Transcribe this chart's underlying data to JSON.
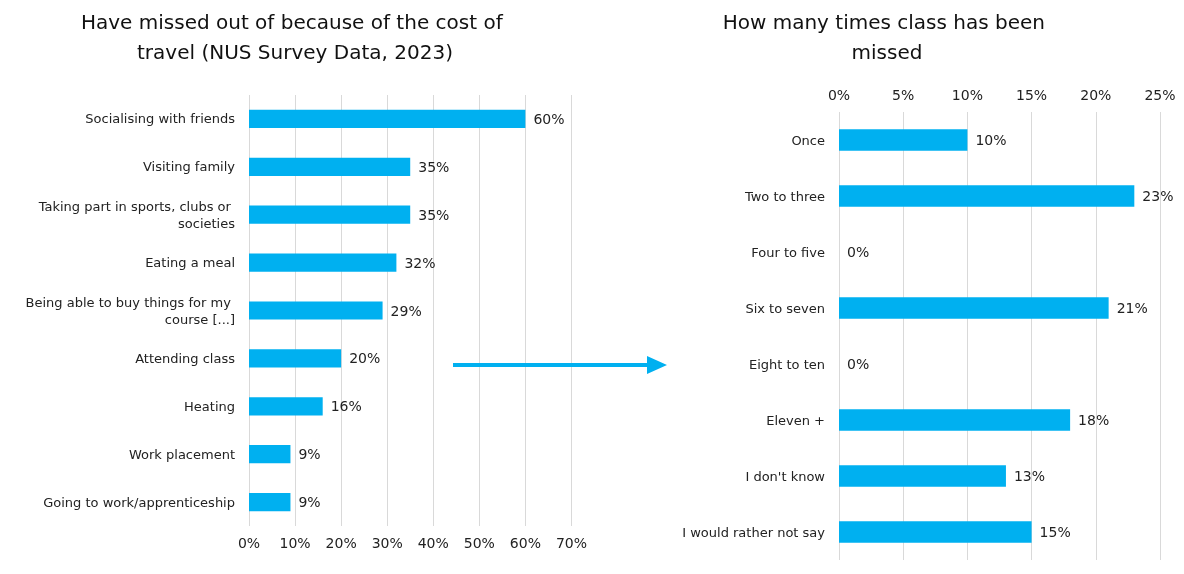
{
  "chart_data": [
    {
      "type": "bar",
      "orientation": "horizontal",
      "title": "Have missed out of because of the cost of travel (NUS Survey Data, 2023)",
      "categories": [
        "Socialising with friends",
        "Visiting family",
        "Taking part in sports, clubs or societies",
        "Eating a meal",
        "Being able to buy things for my course [...]",
        "Attending class",
        "Heating",
        "Work placement",
        "Going to work/apprenticeship"
      ],
      "values": [
        60,
        35,
        35,
        32,
        29,
        20,
        16,
        9,
        9
      ],
      "value_labels": [
        "60%",
        "35%",
        "35%",
        "32%",
        "29%",
        "20%",
        "16%",
        "9%",
        "9%"
      ],
      "color": "#00b0f0",
      "xlim": [
        0,
        70
      ],
      "xticks": [
        {
          "value": 0,
          "label": "0%"
        },
        {
          "value": 10,
          "label": "10%"
        },
        {
          "value": 20,
          "label": "20%"
        },
        {
          "value": 30,
          "label": "30%"
        },
        {
          "value": 40,
          "label": "40%"
        },
        {
          "value": 50,
          "label": "50%"
        },
        {
          "value": 60,
          "label": "60%"
        },
        {
          "value": 70,
          "label": "70%"
        }
      ],
      "grid": "x"
    },
    {
      "type": "bar",
      "orientation": "horizontal",
      "title": "How many times class has been missed",
      "categories": [
        "Once",
        "Two to three",
        "Four to five",
        "Six to seven",
        "Eight to ten",
        "Eleven +",
        "I don't know",
        "I would rather not say"
      ],
      "values": [
        10,
        23,
        0,
        21,
        0,
        18,
        13,
        15
      ],
      "value_labels": [
        "10%",
        "23%",
        "0%",
        "21%",
        "0%",
        "18%",
        "13%",
        "15%"
      ],
      "color": "#00b0f0",
      "x2lim": [
        0,
        25
      ],
      "x2ticks": [
        {
          "value": 0,
          "label": "0%"
        },
        {
          "value": 5,
          "label": "5%"
        },
        {
          "value": 10,
          "label": "10%"
        },
        {
          "value": 15,
          "label": "15%"
        },
        {
          "value": 20,
          "label": "20%"
        },
        {
          "value": 25,
          "label": "25%"
        }
      ],
      "grid": "x"
    }
  ]
}
